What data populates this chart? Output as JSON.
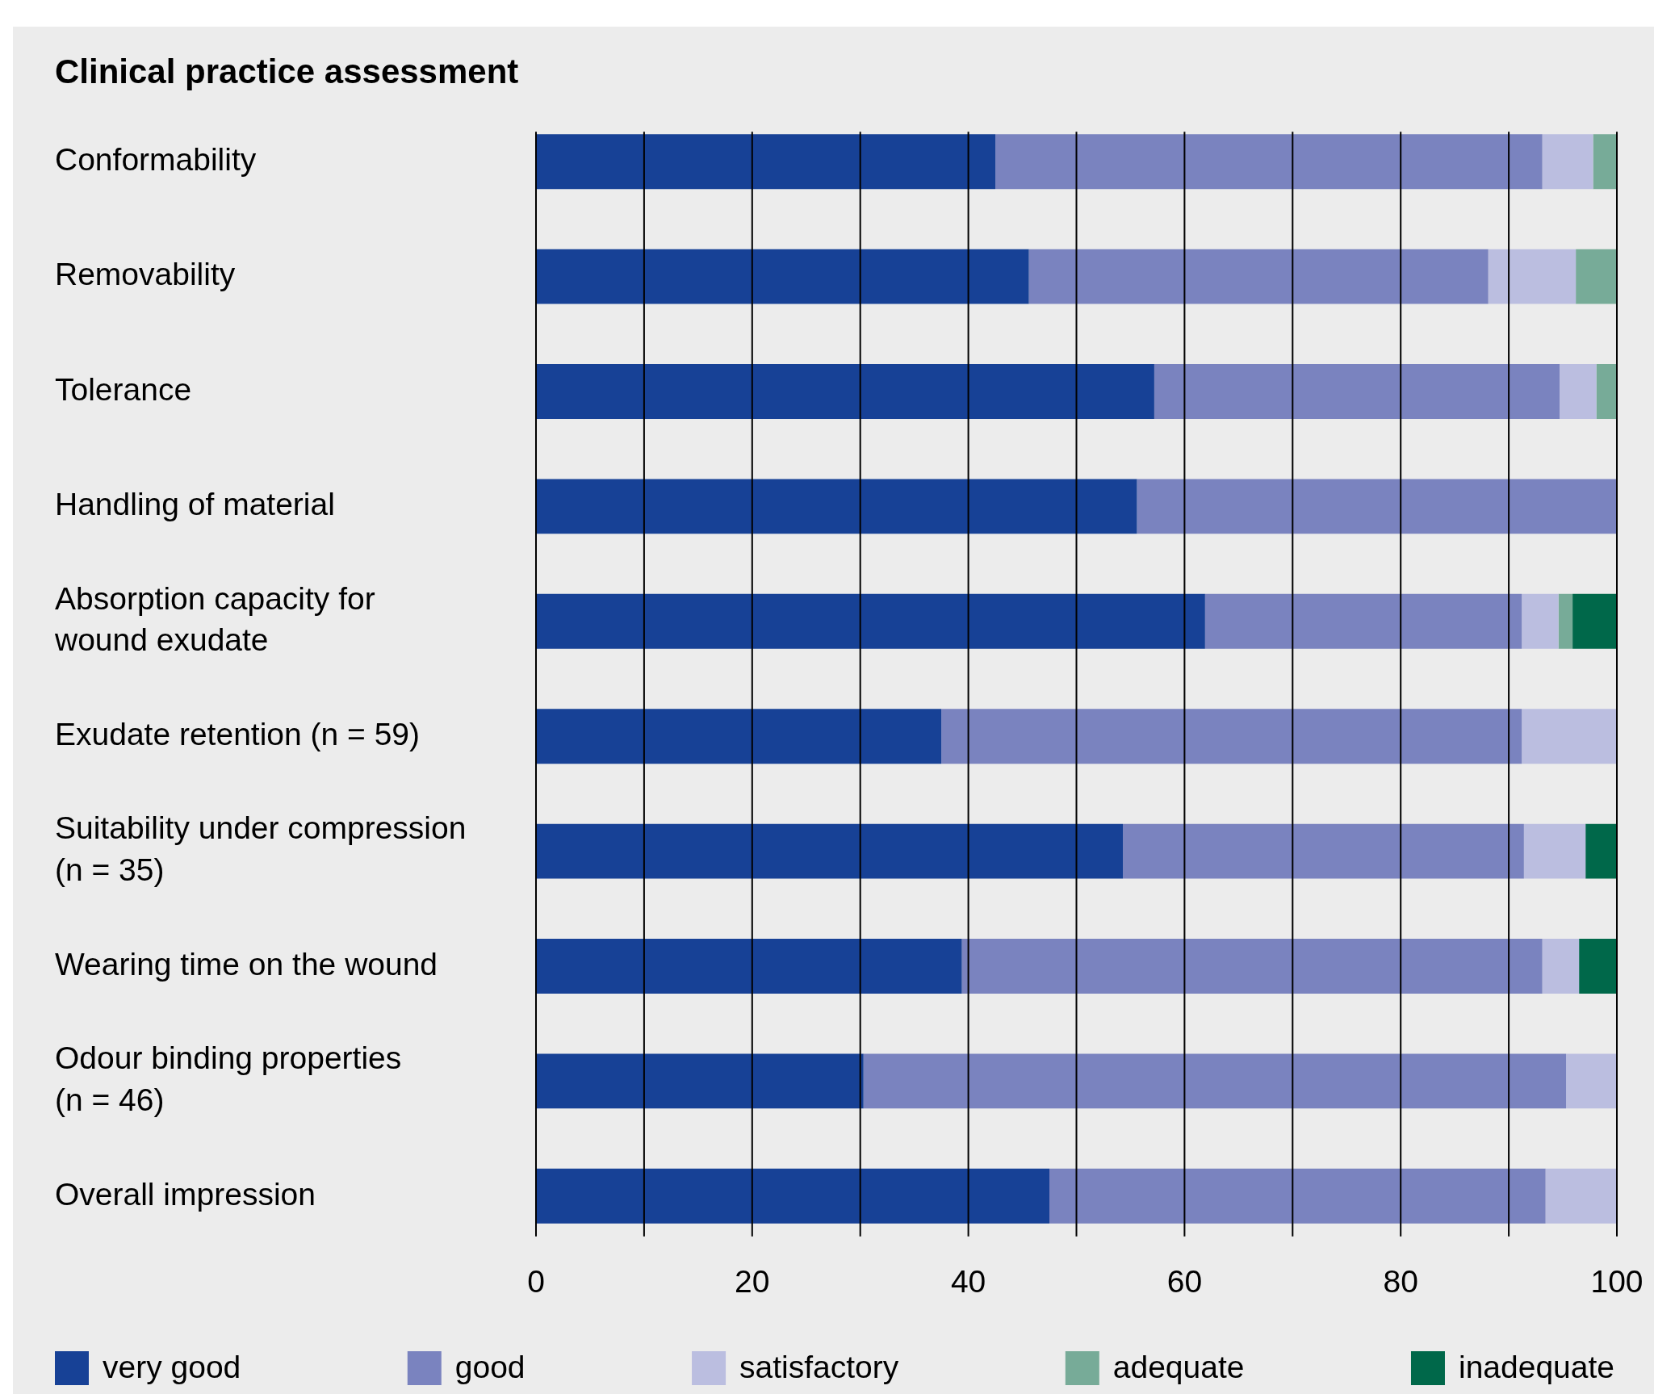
{
  "chart_data": {
    "type": "bar",
    "orientation": "horizontal",
    "stacked": true,
    "title": "Clinical practice assessment",
    "categories": [
      "Conformability",
      "Removability",
      "Tolerance",
      "Handling of material",
      "Absorption capacity for wound exudate",
      "Exudate retention (n = 59)",
      "Suitability under compression (n = 35)",
      "Wearing time on the wound",
      "Odour binding properties (n = 46)",
      "Overall impression"
    ],
    "series": [
      {
        "name": "very good",
        "color": "#174196",
        "values": [
          42.5,
          45.6,
          57.2,
          55.6,
          61.9,
          37.5,
          54.3,
          39.4,
          30.3,
          47.5
        ]
      },
      {
        "name": "good",
        "color": "#7a83bf",
        "values": [
          50.6,
          42.5,
          37.5,
          44.4,
          29.3,
          53.7,
          37.1,
          53.7,
          65.0,
          45.9
        ]
      },
      {
        "name": "satisfactory",
        "color": "#bbbee0",
        "values": [
          4.7,
          8.1,
          3.4,
          null,
          3.4,
          8.8,
          5.7,
          3.4,
          4.7,
          6.6
        ]
      },
      {
        "name": "adequate",
        "color": "#77ab98",
        "values": [
          2.2,
          3.8,
          1.9,
          null,
          1.3,
          null,
          null,
          null,
          null,
          null
        ]
      },
      {
        "name": "inadequate",
        "color": "#00684a",
        "values": [
          null,
          null,
          null,
          null,
          4.1,
          null,
          2.9,
          3.5,
          null,
          null
        ]
      }
    ],
    "xlim": [
      0,
      100
    ],
    "xticks": [
      0,
      {
        "value": 10,
        "label": null
      },
      20,
      {
        "value": 30,
        "label": null
      },
      40,
      {
        "value": 50,
        "label": null
      },
      60,
      {
        "value": 70,
        "label": null
      },
      80,
      {
        "value": 90,
        "label": null
      },
      100
    ],
    "grid": "x",
    "legend": "bottom"
  }
}
